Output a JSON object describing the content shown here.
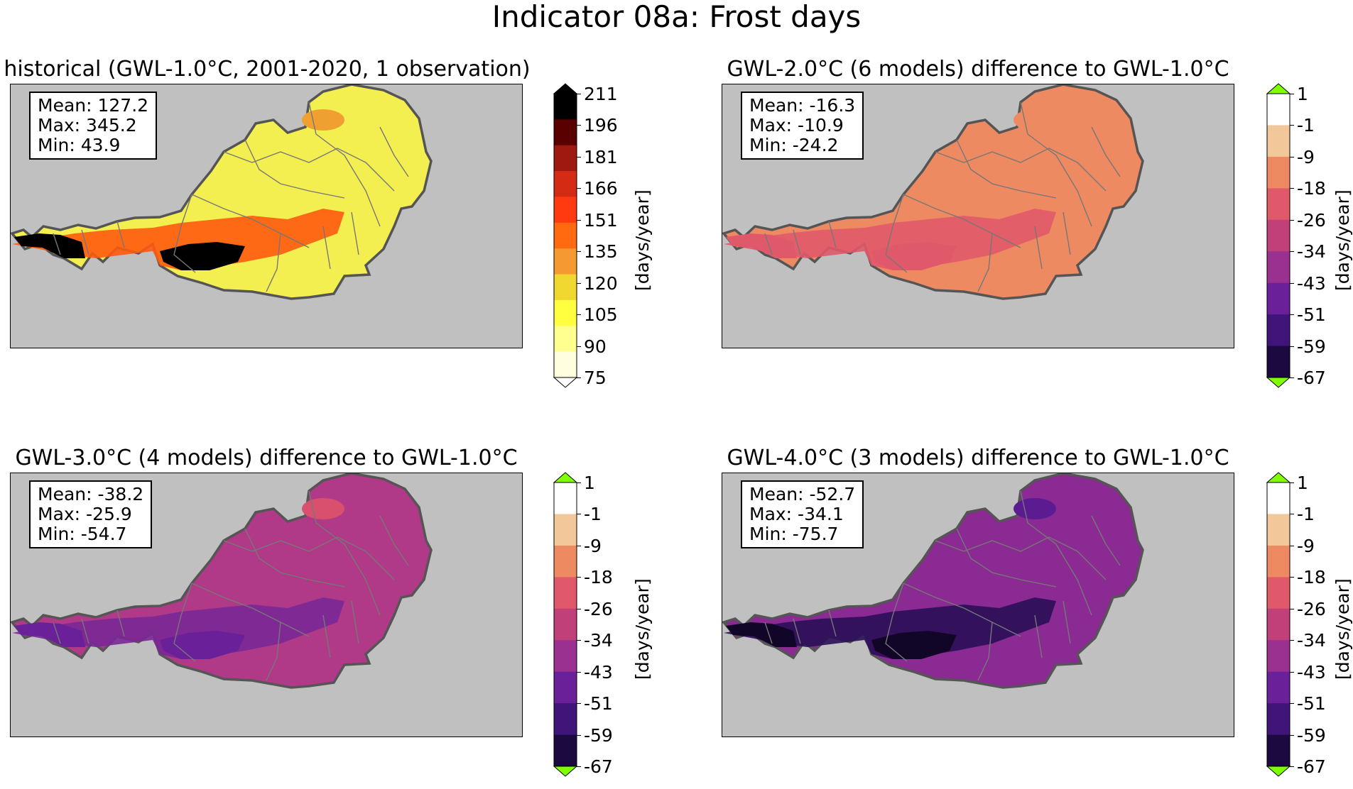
{
  "figure": {
    "title": "Indicator 08a: Frost days"
  },
  "panels": [
    {
      "title": "historical (GWL-1.0°C, 2001-2020, 1 observation)",
      "stats": {
        "mean": "Mean: 127.2",
        "max": "Max: 345.2",
        "min": "Min: 43.9"
      },
      "colorbar": {
        "label": "[days/year]",
        "ticks": [
          "211",
          "196",
          "181",
          "166",
          "151",
          "135",
          "120",
          "105",
          "90",
          "75"
        ],
        "colors": [
          "#000000",
          "#5a0000",
          "#9e1a10",
          "#d42c14",
          "#ff3a10",
          "#ff6a10",
          "#f49a30",
          "#f0d830",
          "#ffff40",
          "#ffff90",
          "#ffffe0"
        ],
        "extend_low": "#ffffff",
        "extend_high": "#000000"
      },
      "map": {
        "fill": "#f4ef50",
        "mountain": "#ff5a10",
        "high": "#000000",
        "mid": "#f0a030"
      }
    },
    {
      "title": "GWL-2.0°C (6 models) difference to GWL-1.0°C",
      "stats": {
        "mean": "Mean: -16.3",
        "max": "Max: -10.9",
        "min": "Min: -24.2"
      },
      "colorbar": {
        "label": "[days/year]",
        "ticks": [
          "1",
          "-1",
          "-9",
          "-18",
          "-26",
          "-34",
          "-43",
          "-51",
          "-59",
          "-67"
        ],
        "colors": [
          "#ffffff",
          "#f2c89a",
          "#ee8a62",
          "#e0596a",
          "#c0407a",
          "#9a3090",
          "#6a2098",
          "#40157a",
          "#1a0a40"
        ],
        "extend_low": "#7fff00",
        "extend_high": "#7fff00"
      },
      "map": {
        "fill": "#ee8a62",
        "mountain": "#e0596a",
        "high": "#e0596a",
        "mid": "#ee8a62"
      }
    },
    {
      "title": "GWL-3.0°C (4 models) difference to GWL-1.0°C",
      "stats": {
        "mean": "Mean: -38.2",
        "max": "Max: -25.9",
        "min": "Min: -54.7"
      },
      "colorbar": {
        "label": "[days/year]",
        "ticks": [
          "1",
          "-1",
          "-9",
          "-18",
          "-26",
          "-34",
          "-43",
          "-51",
          "-59",
          "-67"
        ],
        "colors": [
          "#ffffff",
          "#f2c89a",
          "#ee8a62",
          "#e0596a",
          "#c0407a",
          "#9a3090",
          "#6a2098",
          "#40157a",
          "#1a0a40"
        ],
        "extend_low": "#7fff00",
        "extend_high": "#7fff00"
      },
      "map": {
        "fill": "#b03a88",
        "mountain": "#7a2896",
        "high": "#6a2098",
        "mid": "#d8506e"
      }
    },
    {
      "title": "GWL-4.0°C (3 models) difference to GWL-1.0°C",
      "stats": {
        "mean": "Mean: -52.7",
        "max": "Max: -34.1",
        "min": "Min: -75.7"
      },
      "colorbar": {
        "label": "[days/year]",
        "ticks": [
          "1",
          "-1",
          "-9",
          "-18",
          "-26",
          "-34",
          "-43",
          "-51",
          "-59",
          "-67"
        ],
        "colors": [
          "#ffffff",
          "#f2c89a",
          "#ee8a62",
          "#e0596a",
          "#c0407a",
          "#9a3090",
          "#6a2098",
          "#40157a",
          "#1a0a40"
        ],
        "extend_low": "#7fff00",
        "extend_high": "#7fff00"
      },
      "map": {
        "fill": "#8a2a92",
        "mountain": "#2a0e58",
        "high": "#120628",
        "mid": "#5a1c90"
      }
    }
  ]
}
